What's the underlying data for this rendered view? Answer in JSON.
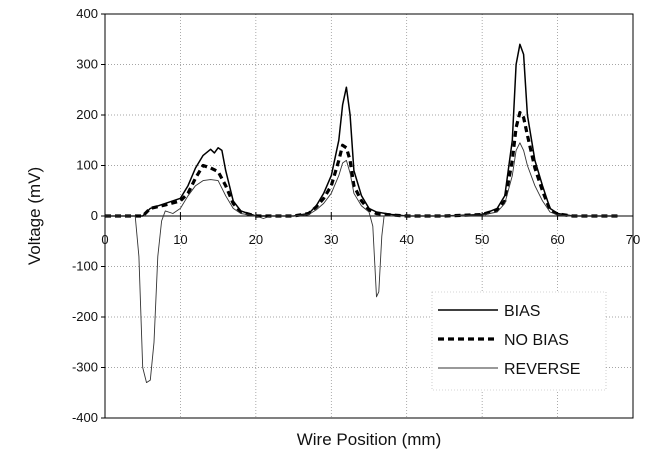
{
  "chart_data": {
    "type": "line",
    "xlabel": "Wire Position (mm)",
    "ylabel": "Voltage (mV)",
    "xlim": [
      0,
      70
    ],
    "ylim": [
      -400,
      400
    ],
    "x_ticks": [
      0,
      10,
      20,
      30,
      40,
      50,
      60,
      70
    ],
    "y_ticks": [
      400,
      300,
      200,
      100,
      0,
      -100,
      -200,
      -300,
      -400
    ],
    "grid": "dotted",
    "legend_position": "bottom-right",
    "series": [
      {
        "name": "BIAS",
        "style": "solid",
        "color": "#000000",
        "points": [
          [
            0,
            0
          ],
          [
            5,
            0
          ],
          [
            6,
            15
          ],
          [
            8,
            25
          ],
          [
            10,
            35
          ],
          [
            11,
            60
          ],
          [
            12,
            95
          ],
          [
            13,
            120
          ],
          [
            14,
            132
          ],
          [
            14.5,
            125
          ],
          [
            15,
            135
          ],
          [
            15.5,
            130
          ],
          [
            16,
            90
          ],
          [
            17,
            30
          ],
          [
            18,
            10
          ],
          [
            20,
            0
          ],
          [
            25,
            0
          ],
          [
            27,
            5
          ],
          [
            28,
            20
          ],
          [
            29,
            45
          ],
          [
            30,
            80
          ],
          [
            31,
            150
          ],
          [
            31.5,
            220
          ],
          [
            32,
            255
          ],
          [
            32.5,
            200
          ],
          [
            33,
            90
          ],
          [
            34,
            40
          ],
          [
            35,
            15
          ],
          [
            36,
            8
          ],
          [
            38,
            3
          ],
          [
            40,
            0
          ],
          [
            45,
            0
          ],
          [
            50,
            3
          ],
          [
            52,
            15
          ],
          [
            53,
            40
          ],
          [
            54,
            150
          ],
          [
            54.5,
            300
          ],
          [
            55,
            340
          ],
          [
            55.5,
            320
          ],
          [
            56,
            200
          ],
          [
            57,
            110
          ],
          [
            58,
            60
          ],
          [
            59,
            15
          ],
          [
            60,
            5
          ],
          [
            62,
            0
          ],
          [
            68,
            0
          ]
        ]
      },
      {
        "name": "NO BIAS",
        "style": "dashed",
        "color": "#000000",
        "points": [
          [
            0,
            0
          ],
          [
            5,
            0
          ],
          [
            6,
            15
          ],
          [
            8,
            22
          ],
          [
            10,
            30
          ],
          [
            11,
            45
          ],
          [
            12,
            75
          ],
          [
            13,
            100
          ],
          [
            14,
            95
          ],
          [
            15,
            88
          ],
          [
            16,
            60
          ],
          [
            17,
            25
          ],
          [
            18,
            8
          ],
          [
            20,
            0
          ],
          [
            25,
            0
          ],
          [
            27,
            5
          ],
          [
            28,
            18
          ],
          [
            29,
            35
          ],
          [
            30,
            60
          ],
          [
            31,
            110
          ],
          [
            31.5,
            140
          ],
          [
            32,
            135
          ],
          [
            32.5,
            110
          ],
          [
            33,
            60
          ],
          [
            34,
            30
          ],
          [
            35,
            12
          ],
          [
            36,
            5
          ],
          [
            38,
            2
          ],
          [
            40,
            0
          ],
          [
            45,
            0
          ],
          [
            50,
            3
          ],
          [
            52,
            12
          ],
          [
            53,
            30
          ],
          [
            54,
            110
          ],
          [
            54.5,
            175
          ],
          [
            55,
            205
          ],
          [
            55.5,
            195
          ],
          [
            56,
            160
          ],
          [
            57,
            95
          ],
          [
            58,
            50
          ],
          [
            59,
            12
          ],
          [
            60,
            4
          ],
          [
            62,
            0
          ],
          [
            68,
            0
          ]
        ]
      },
      {
        "name": "REVERSE",
        "style": "thin",
        "color": "#333333",
        "points": [
          [
            0,
            0
          ],
          [
            4,
            0
          ],
          [
            4.5,
            -80
          ],
          [
            5,
            -300
          ],
          [
            5.5,
            -330
          ],
          [
            6,
            -325
          ],
          [
            6.5,
            -250
          ],
          [
            7,
            -80
          ],
          [
            7.5,
            -10
          ],
          [
            8,
            10
          ],
          [
            9,
            5
          ],
          [
            10,
            15
          ],
          [
            11,
            40
          ],
          [
            12,
            60
          ],
          [
            13,
            70
          ],
          [
            14,
            72
          ],
          [
            15,
            70
          ],
          [
            16,
            40
          ],
          [
            17,
            15
          ],
          [
            18,
            5
          ],
          [
            20,
            0
          ],
          [
            21,
            -5
          ],
          [
            22,
            0
          ],
          [
            25,
            0
          ],
          [
            27,
            3
          ],
          [
            28,
            12
          ],
          [
            29,
            25
          ],
          [
            30,
            45
          ],
          [
            31,
            80
          ],
          [
            31.5,
            105
          ],
          [
            32,
            110
          ],
          [
            32.5,
            85
          ],
          [
            33,
            45
          ],
          [
            34,
            20
          ],
          [
            35,
            8
          ],
          [
            35.5,
            -20
          ],
          [
            36,
            -160
          ],
          [
            36.3,
            -150
          ],
          [
            36.7,
            -40
          ],
          [
            37,
            0
          ],
          [
            40,
            0
          ],
          [
            45,
            0
          ],
          [
            50,
            2
          ],
          [
            52,
            8
          ],
          [
            53,
            25
          ],
          [
            54,
            80
          ],
          [
            54.5,
            130
          ],
          [
            55,
            145
          ],
          [
            55.5,
            130
          ],
          [
            56,
            100
          ],
          [
            57,
            60
          ],
          [
            58,
            30
          ],
          [
            59,
            8
          ],
          [
            60,
            2
          ],
          [
            62,
            0
          ],
          [
            68,
            0
          ]
        ]
      }
    ]
  }
}
